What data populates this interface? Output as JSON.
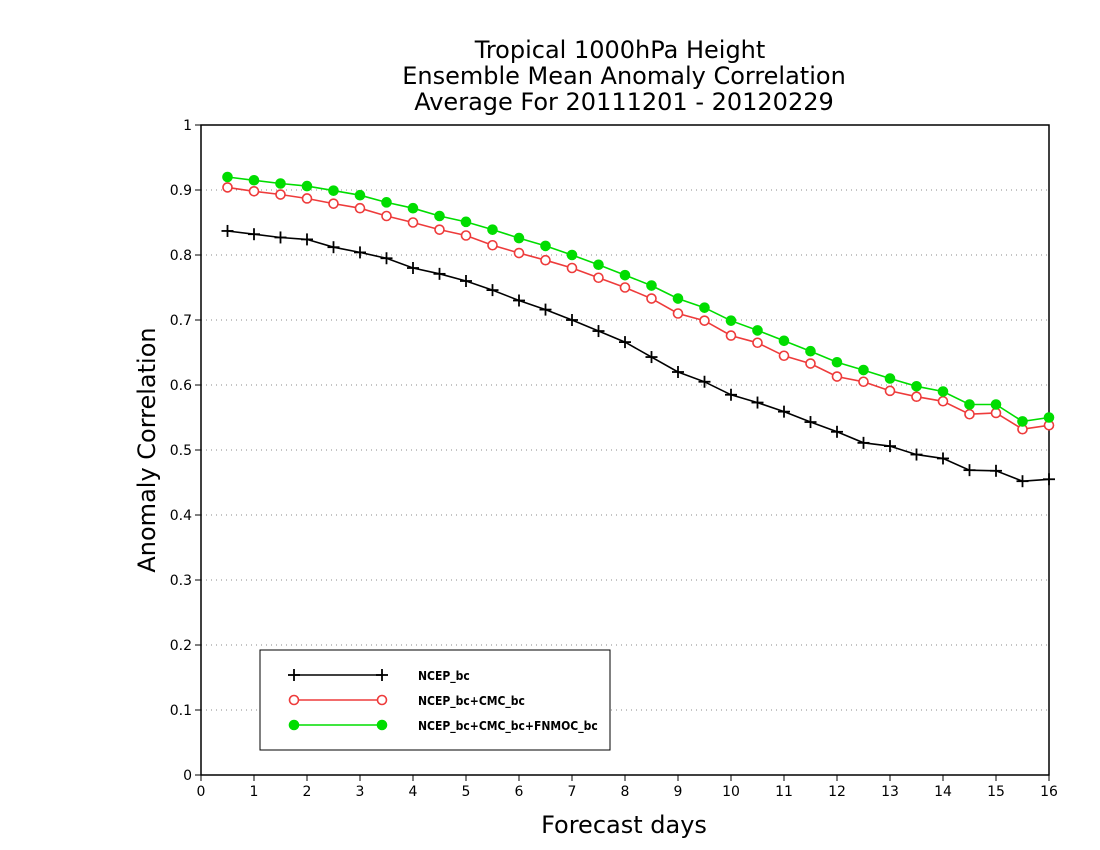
{
  "chart_data": {
    "type": "line",
    "title": [
      "Tropical 1000hPa Height",
      "Ensemble Mean Anomaly Correlation",
      "Average For 20111201 - 20120229"
    ],
    "xlabel": "Forecast days",
    "ylabel": "Anomaly Correlation",
    "xlim": [
      0,
      16
    ],
    "ylim": [
      0,
      1
    ],
    "x_ticks": [
      0,
      1,
      2,
      3,
      4,
      5,
      6,
      7,
      8,
      9,
      10,
      11,
      12,
      13,
      14,
      15,
      16
    ],
    "y_ticks": [
      0,
      0.1,
      0.2,
      0.3,
      0.4,
      0.5,
      0.6,
      0.7,
      0.8,
      0.9,
      1
    ],
    "y_tick_labels": [
      "0",
      "0.1",
      "0.2",
      "0.3",
      "0.4",
      "0.5",
      "0.6",
      "0.7",
      "0.8",
      "0.9",
      "1"
    ],
    "grid": "horizontal dotted",
    "legend_position": "bottom-left",
    "x": [
      0.5,
      1,
      1.5,
      2,
      2.5,
      3,
      3.5,
      4,
      4.5,
      5,
      5.5,
      6,
      6.5,
      7,
      7.5,
      8,
      8.5,
      9,
      9.5,
      10,
      10.5,
      11,
      11.5,
      12,
      12.5,
      13,
      13.5,
      14,
      14.5,
      15,
      15.5,
      16
    ],
    "series": [
      {
        "name": "NCEP_bc",
        "color": "#000000",
        "marker": "plus",
        "values": [
          0.837,
          0.832,
          0.827,
          0.824,
          0.812,
          0.804,
          0.795,
          0.78,
          0.771,
          0.76,
          0.746,
          0.73,
          0.716,
          0.7,
          0.683,
          0.666,
          0.643,
          0.62,
          0.605,
          0.585,
          0.573,
          0.559,
          0.543,
          0.528,
          0.511,
          0.506,
          0.493,
          0.487,
          0.469,
          0.468,
          0.452,
          0.455
        ]
      },
      {
        "name": "NCEP_bc+CMC_bc",
        "color": "#ee3b3b",
        "marker": "open-circle",
        "values": [
          0.904,
          0.898,
          0.893,
          0.887,
          0.879,
          0.872,
          0.86,
          0.85,
          0.839,
          0.83,
          0.815,
          0.803,
          0.792,
          0.78,
          0.765,
          0.75,
          0.733,
          0.71,
          0.699,
          0.676,
          0.665,
          0.645,
          0.633,
          0.613,
          0.605,
          0.591,
          0.582,
          0.575,
          0.555,
          0.557,
          0.532,
          0.538
        ]
      },
      {
        "name": "NCEP_bc+CMC_bc+FNMOC_bc",
        "color": "#00dd00",
        "marker": "filled-circle",
        "values": [
          0.92,
          0.915,
          0.91,
          0.906,
          0.899,
          0.892,
          0.881,
          0.872,
          0.86,
          0.851,
          0.839,
          0.826,
          0.814,
          0.8,
          0.785,
          0.769,
          0.753,
          0.733,
          0.719,
          0.699,
          0.684,
          0.668,
          0.652,
          0.635,
          0.623,
          0.61,
          0.598,
          0.59,
          0.57,
          0.57,
          0.544,
          0.55
        ]
      }
    ]
  }
}
